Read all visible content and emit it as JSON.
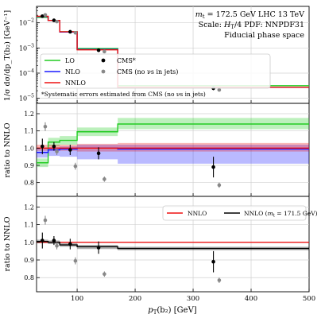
{
  "chart_data": [
    {
      "type": "step",
      "panel": "top",
      "ylabel": "1/σ dσ/dp_T(b₂) [GeV⁻¹]",
      "yscale": "log",
      "ylim": [
        6.3e-06,
        0.045
      ],
      "xlim": [
        30,
        500
      ],
      "grid": true,
      "yticks": [
        {
          "v": 0.01,
          "base": "10",
          "exp": "−2"
        },
        {
          "v": 0.001,
          "base": "10",
          "exp": "−3"
        },
        {
          "v": 0.0001,
          "base": "10",
          "exp": "−4"
        },
        {
          "v": 1e-05,
          "base": "10",
          "exp": "−5"
        }
      ],
      "annotation": {
        "line1_prefix": "m",
        "line1_sub": "t",
        "line1_rest": " = 172.5 GeV LHC 13 TeV",
        "line2_a": "Scale: ",
        "line2_b": "H",
        "line2_sub": "T",
        "line2_c": "/4 PDF: NNPDF31",
        "line3": "Fiducial phase space"
      },
      "footnote": "*Systematic errors estimated from CMS (no νs in jets)",
      "legend": {
        "LO": "LO",
        "NLO": "NLO",
        "NNLO": "NNLO",
        "CMS": "CMS*",
        "CMS_nonu": "CMS (no νs in jets)"
      },
      "bin_edges": [
        30,
        50,
        70,
        100,
        170,
        500
      ],
      "series": [
        {
          "name": "LO",
          "color": "#22cc22",
          "values": [
            0.0165,
            0.0124,
            0.0044,
            0.00095,
            3.16e-05
          ]
        },
        {
          "name": "NLO",
          "color": "#1a1aff",
          "values": [
            0.0178,
            0.0124,
            0.0043,
            0.00087,
            2.75e-05
          ]
        },
        {
          "name": "NNLO",
          "color": "#ee1111",
          "values": [
            0.0182,
            0.0124,
            0.0044,
            0.00084,
            2.77e-05
          ]
        }
      ],
      "points": [
        {
          "name": "CMS*",
          "color": "#000000",
          "x": [
            40,
            60,
            88,
            137,
            335
          ],
          "y": [
            0.0183,
            0.0125,
            0.0044,
            0.00081,
            2.5e-05
          ],
          "err": [
            0.002,
            0.0012,
            0.0005,
            0.0001,
            4e-06
          ]
        },
        {
          "name": "CMS (no νs in jets)",
          "color": "#888888",
          "x": [
            45,
            65,
            97,
            147,
            345
          ],
          "y": [
            0.0205,
            0.0112,
            0.004,
            0.00072,
            2.15e-05
          ]
        }
      ]
    },
    {
      "type": "step",
      "panel": "middle",
      "ylabel": "ratio to NNLO",
      "ylim": [
        0.72,
        1.26
      ],
      "yticks": [
        0.8,
        0.9,
        1.0,
        1.1,
        1.2
      ],
      "ytick_labels": [
        "0.8",
        "0.9",
        "1.0",
        "1.1",
        "1.2"
      ],
      "bin_edges": [
        30,
        50,
        70,
        100,
        170,
        500
      ],
      "series": [
        {
          "name": "LO",
          "color": "#22cc22",
          "values": [
            0.915,
            1.035,
            1.045,
            1.095,
            1.14
          ],
          "band_lo": [
            0.89,
            1.01,
            1.02,
            1.07,
            1.11
          ],
          "band_hi": [
            0.94,
            1.06,
            1.07,
            1.12,
            1.175
          ]
        },
        {
          "name": "NLO",
          "color": "#1a1aff",
          "values": [
            0.975,
            0.99,
            0.995,
            1.0,
            0.995
          ],
          "band_lo": [
            0.945,
            0.955,
            0.95,
            0.935,
            0.91
          ],
          "band_hi": [
            1.0,
            1.005,
            1.01,
            1.02,
            1.02
          ]
        },
        {
          "name": "NNLO",
          "color": "#ee1111",
          "values": [
            1.0,
            1.0,
            1.0,
            1.0,
            1.0
          ],
          "band_lo": [
            0.985,
            0.985,
            0.985,
            0.98,
            0.98
          ],
          "band_hi": [
            1.02,
            1.02,
            1.02,
            1.025,
            1.03
          ]
        }
      ],
      "points": [
        {
          "name": "CMS*",
          "color": "#000000",
          "x": [
            40,
            60,
            88,
            137,
            335
          ],
          "y": [
            1.01,
            1.01,
            0.99,
            0.97,
            0.89
          ],
          "err": [
            0.045,
            0.025,
            0.03,
            0.035,
            0.06
          ]
        },
        {
          "name": "CMS (no νs in jets)",
          "color": "#888888",
          "x": [
            45,
            65,
            97,
            147,
            345
          ],
          "y": [
            1.125,
            0.98,
            0.895,
            0.82,
            0.785
          ],
          "err": [
            0.025,
            0.02,
            0.02,
            0.015,
            0.015
          ]
        }
      ]
    },
    {
      "type": "step",
      "panel": "bottom",
      "ylabel": "ratio to NNLO",
      "xlabel_a": "p",
      "xlabel_sub": "T",
      "xlabel_b": "(b₂) [GeV]",
      "ylim": [
        0.72,
        1.26
      ],
      "yticks": [
        0.8,
        0.9,
        1.0,
        1.1,
        1.2
      ],
      "ytick_labels": [
        "0.8",
        "0.9",
        "1.0",
        "1.1",
        "1.2"
      ],
      "xticks": [
        100,
        200,
        300,
        400,
        500
      ],
      "xtick_labels": [
        "100",
        "200",
        "300",
        "400",
        "500"
      ],
      "legend": {
        "NNLO": "NNLO",
        "NNLO_alt_a": "NNLO (",
        "NNLO_alt_m": "m",
        "NNLO_alt_sub": "t",
        "NNLO_alt_b": " = 171.5 GeV)"
      },
      "bin_edges": [
        30,
        50,
        70,
        100,
        170,
        500
      ],
      "series": [
        {
          "name": "NNLO",
          "color": "#ee1111",
          "values": [
            1.0,
            1.0,
            1.0,
            1.0,
            1.0
          ]
        },
        {
          "name": "NNLO (m_t = 171.5 GeV)",
          "color": "#000000",
          "values": [
            1.005,
            1.0,
            0.985,
            0.975,
            0.965
          ],
          "band_lo": [
            0.995,
            0.99,
            0.975,
            0.962,
            0.955
          ],
          "band_hi": [
            1.015,
            1.01,
            0.995,
            0.985,
            0.975
          ]
        }
      ],
      "points": [
        {
          "name": "CMS*",
          "color": "#000000",
          "x": [
            40,
            60,
            88,
            137,
            335
          ],
          "y": [
            1.01,
            1.01,
            0.99,
            0.97,
            0.89
          ],
          "err": [
            0.045,
            0.025,
            0.03,
            0.035,
            0.06
          ]
        },
        {
          "name": "CMS (no νs in jets)",
          "color": "#888888",
          "x": [
            45,
            65,
            97,
            147,
            345
          ],
          "y": [
            1.125,
            0.98,
            0.895,
            0.82,
            0.785
          ],
          "err": [
            0.025,
            0.02,
            0.02,
            0.015,
            0.015
          ]
        }
      ]
    }
  ]
}
